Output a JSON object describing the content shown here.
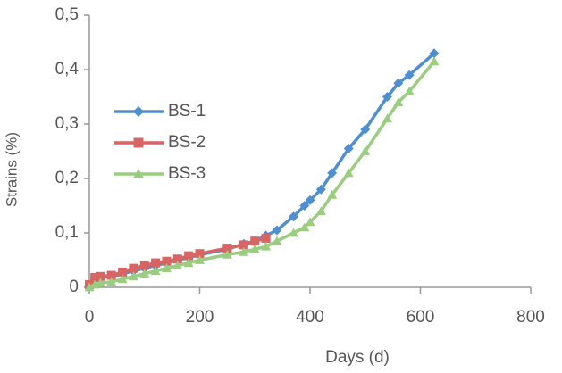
{
  "chart_data": {
    "type": "line",
    "xlabel": "Days (d)",
    "ylabel": "Strains (%)",
    "x": [
      0,
      10,
      20,
      40,
      60,
      80,
      100,
      120,
      140,
      160,
      180,
      200,
      250,
      280,
      300,
      320,
      340,
      370,
      390,
      400,
      420,
      440,
      470,
      500,
      540,
      560,
      580,
      625
    ],
    "series": [
      {
        "name": "BS-1",
        "color": "#4f8fd0",
        "marker": "diamond",
        "values": [
          0.005,
          0.015,
          0.018,
          0.02,
          0.025,
          0.03,
          0.035,
          0.04,
          0.045,
          0.05,
          0.055,
          0.06,
          0.07,
          0.08,
          0.085,
          0.095,
          0.105,
          0.13,
          0.15,
          0.16,
          0.18,
          0.21,
          0.255,
          0.29,
          0.35,
          0.375,
          0.39,
          0.43
        ]
      },
      {
        "name": "BS-2",
        "color": "#d86464",
        "marker": "square",
        "values": [
          0.005,
          0.018,
          0.02,
          0.022,
          0.028,
          0.035,
          0.04,
          0.045,
          0.048,
          0.052,
          0.058,
          0.062,
          0.072,
          0.078,
          0.085,
          0.09,
          null,
          null,
          null,
          null,
          null,
          null,
          null,
          null,
          null,
          null,
          null,
          null
        ]
      },
      {
        "name": "BS-3",
        "color": "#9acd80",
        "marker": "triangle",
        "values": [
          0.0,
          0.005,
          0.008,
          0.01,
          0.015,
          0.02,
          0.025,
          0.03,
          0.035,
          0.04,
          0.045,
          0.05,
          0.06,
          0.065,
          0.07,
          0.075,
          0.085,
          0.1,
          0.11,
          0.12,
          0.14,
          0.17,
          0.21,
          0.25,
          0.31,
          0.34,
          0.36,
          0.415
        ]
      }
    ],
    "xlim": [
      0,
      800
    ],
    "xticks": [
      0,
      200,
      400,
      600,
      800
    ],
    "ylim": [
      0,
      0.5
    ],
    "yticks": [
      0,
      {
        "value": 0.1,
        "label": "0,1"
      },
      {
        "value": 0.2,
        "label": "0,2"
      },
      {
        "value": 0.3,
        "label": "0,3"
      },
      {
        "value": 0.4,
        "label": "0,4"
      },
      {
        "value": 0.5,
        "label": "0,5"
      }
    ],
    "grid": false,
    "legend": "center-left"
  }
}
